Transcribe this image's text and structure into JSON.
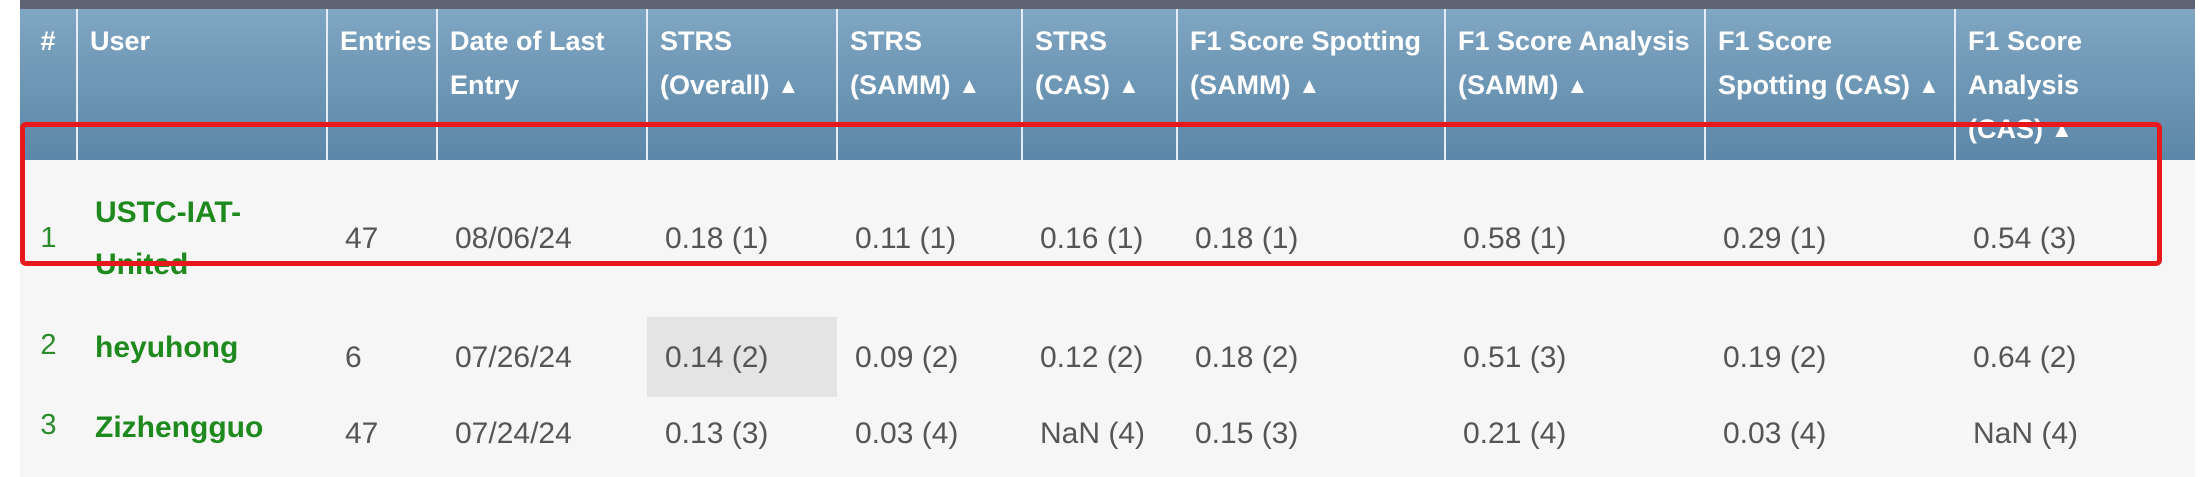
{
  "table": {
    "headers": [
      {
        "label": "#",
        "sortable": false
      },
      {
        "label": "User",
        "sortable": false
      },
      {
        "label": "Entries",
        "sortable": false
      },
      {
        "label": "Date of Last Entry",
        "sortable": false
      },
      {
        "label": "STRS (Overall)",
        "sortable": true
      },
      {
        "label": "STRS (SAMM)",
        "sortable": true
      },
      {
        "label": "STRS (CAS)",
        "sortable": true
      },
      {
        "label": "F1 Score Spotting (SAMM)",
        "sortable": true
      },
      {
        "label": "F1 Score Analysis (SAMM)",
        "sortable": true
      },
      {
        "label": "F1 Score Spotting (CAS)",
        "sortable": true
      },
      {
        "label": "F1 Score Analysis (CAS)",
        "sortable": true
      }
    ],
    "sort_glyph": "▲",
    "rows": [
      {
        "rank": "1",
        "user": "USTC-IAT-United",
        "entries": "47",
        "date": "08/06/24",
        "strs_overall": "0.18 (1)",
        "strs_samm": "0.11 (1)",
        "strs_cas": "0.16 (1)",
        "f1_spot_samm": "0.18 (1)",
        "f1_anal_samm": "0.58 (1)",
        "f1_spot_cas": "0.29 (1)",
        "f1_anal_cas": "0.54 (3)"
      },
      {
        "rank": "2",
        "user": "heyuhong",
        "entries": "6",
        "date": "07/26/24",
        "strs_overall": "0.14 (2)",
        "strs_samm": "0.09 (2)",
        "strs_cas": "0.12 (2)",
        "f1_spot_samm": "0.18 (2)",
        "f1_anal_samm": "0.51 (3)",
        "f1_spot_cas": "0.19 (2)",
        "f1_anal_cas": "0.64 (2)"
      },
      {
        "rank": "3",
        "user": "Zizhengguo",
        "entries": "47",
        "date": "07/24/24",
        "strs_overall": "0.13 (3)",
        "strs_samm": "0.03 (4)",
        "strs_cas": "NaN (4)",
        "f1_spot_samm": "0.15 (3)",
        "f1_anal_samm": "0.21 (4)",
        "f1_spot_cas": "0.03 (4)",
        "f1_anal_cas": "NaN (4)"
      }
    ]
  },
  "colors": {
    "header_bg": "#6f98b8",
    "user_link": "#1e8a1e",
    "highlight_box": "#e8191c",
    "hovered_cell": "#e4e4e4"
  }
}
